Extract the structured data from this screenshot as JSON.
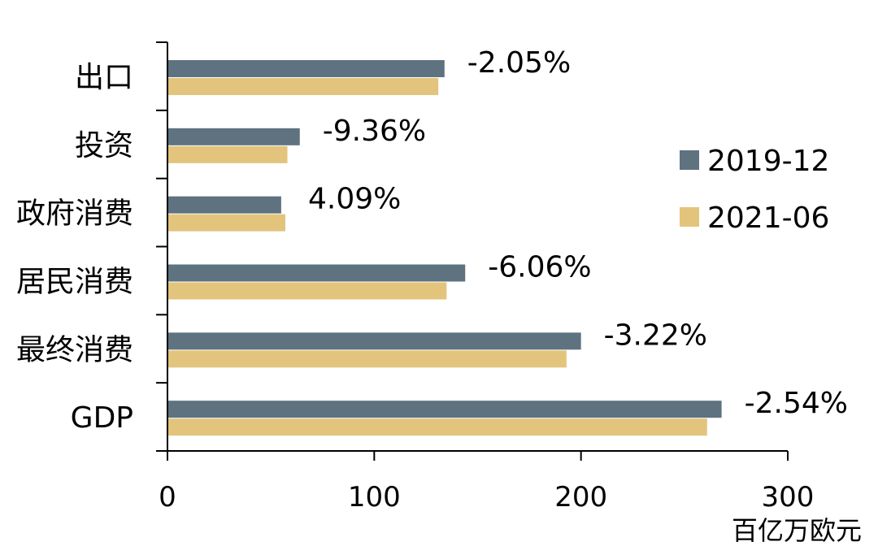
{
  "chart_data": {
    "type": "bar",
    "orientation": "horizontal",
    "categories": [
      "出口",
      "投资",
      "政府消费",
      "居民消费",
      "最终消费",
      "GDP"
    ],
    "series": [
      {
        "name": "2019-12",
        "color": "#5f7280",
        "values": [
          134,
          64,
          55,
          144,
          200,
          268
        ]
      },
      {
        "name": "2021-06",
        "color": "#e2c47c",
        "values": [
          131,
          58,
          57,
          135,
          193,
          261
        ]
      }
    ],
    "data_labels": [
      "-2.05%",
      "-9.36%",
      "4.09%",
      "-6.06%",
      "-3.22%",
      "-2.54%"
    ],
    "xlim": [
      0,
      300
    ],
    "xticks": [
      "0",
      "100",
      "200",
      "300"
    ],
    "unit_label": "百亿万欧元",
    "legend_position": "right",
    "grid": false
  }
}
